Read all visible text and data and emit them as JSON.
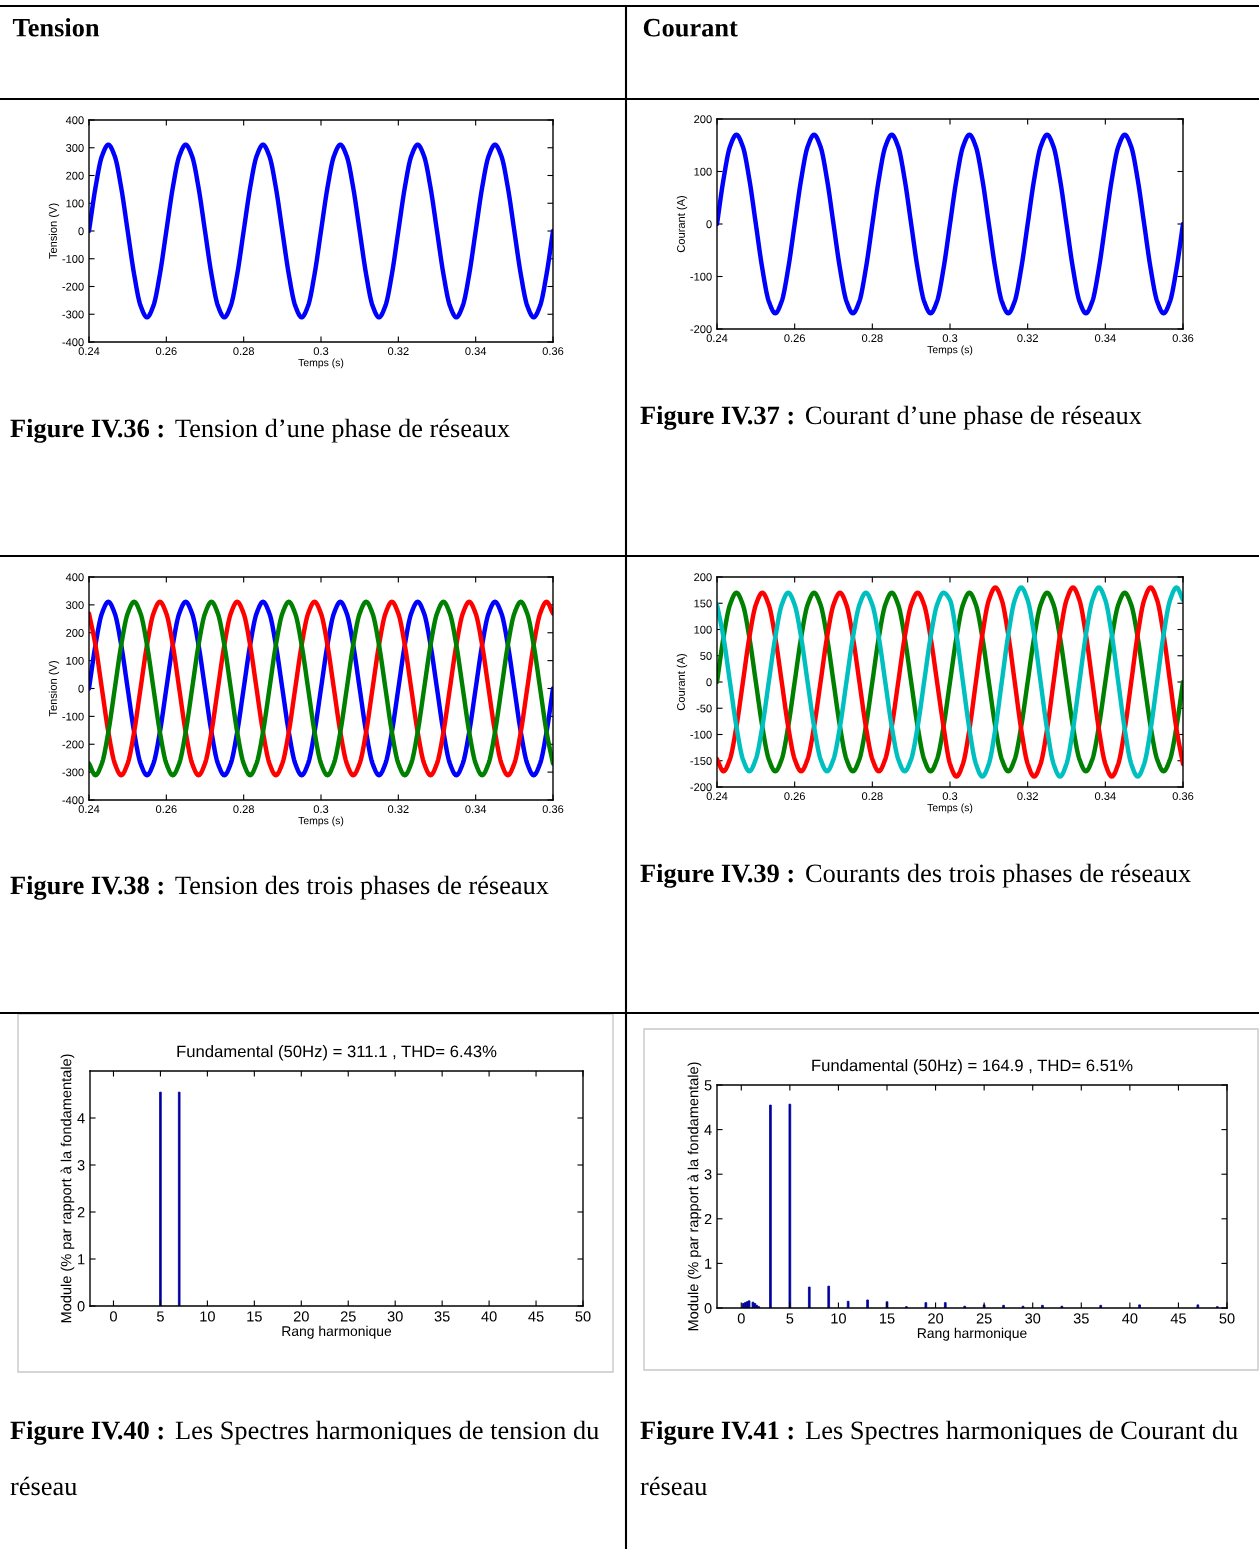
{
  "chart_data": [
    {
      "type": "line",
      "xlabel": "Temps (s)",
      "ylabel": "Tension (V)",
      "xlim": [
        0.24,
        0.36
      ],
      "xticks": [
        0.24,
        0.26,
        0.28,
        0.3,
        0.32,
        0.34,
        0.36
      ],
      "ylim": [
        -400,
        400
      ],
      "yticks": [
        -400,
        -300,
        -200,
        -100,
        0,
        100,
        200,
        300,
        400
      ],
      "grid": false,
      "legend": false,
      "annotations": [
        "Tension",
        "Figure IV.36 :",
        "Tension d’une phase de réseaux"
      ],
      "x": [
        0.24,
        0.24167,
        0.24333,
        0.245,
        0.24667,
        0.24833,
        0.25,
        0.25167,
        0.25333,
        0.255,
        0.25667,
        0.25833,
        0.26,
        0.26167,
        0.26333,
        0.265,
        0.26667,
        0.26833,
        0.27,
        0.27167,
        0.27333,
        0.275,
        0.27667,
        0.27833,
        0.28,
        0.28167,
        0.28333,
        0.285,
        0.28667,
        0.28833,
        0.29,
        0.29167,
        0.29333,
        0.295,
        0.29667,
        0.29833,
        0.3,
        0.30167,
        0.30333,
        0.305,
        0.30667,
        0.30833,
        0.31,
        0.31167,
        0.31333,
        0.315,
        0.31667,
        0.31833,
        0.32,
        0.32167,
        0.32333,
        0.325,
        0.32667,
        0.32833,
        0.33,
        0.33167,
        0.33333,
        0.335,
        0.33667,
        0.33833,
        0.34,
        0.34167,
        0.34333,
        0.345,
        0.34667,
        0.34833,
        0.35,
        0.35167,
        0.35333,
        0.355,
        0.35667,
        0.35833,
        0.36
      ],
      "series": [
        {
          "color": "#0000ff",
          "values": [
            0,
            156,
            269,
            311,
            269,
            156,
            0,
            -156,
            -269,
            -311,
            -269,
            -156,
            0,
            156,
            269,
            311,
            269,
            156,
            0,
            -156,
            -269,
            -311,
            -269,
            -156,
            0,
            156,
            269,
            311,
            269,
            156,
            0,
            -156,
            -269,
            -311,
            -269,
            -156,
            0,
            156,
            269,
            311,
            269,
            156,
            0,
            -156,
            -269,
            -311,
            -269,
            -156,
            0,
            156,
            269,
            311,
            269,
            156,
            0,
            -156,
            -269,
            -311,
            -269,
            -156,
            0,
            156,
            269,
            311,
            269,
            156,
            0,
            -156,
            -269,
            -311,
            -269,
            -156,
            0
          ]
        }
      ]
    },
    {
      "type": "line",
      "xlabel": "Temps (s)",
      "ylabel": "Courant (A)",
      "xlim": [
        0.24,
        0.36
      ],
      "xticks": [
        0.24,
        0.26,
        0.28,
        0.3,
        0.32,
        0.34,
        0.36
      ],
      "ylim": [
        -200,
        200
      ],
      "yticks": [
        -200,
        -100,
        0,
        100,
        200
      ],
      "grid": false,
      "legend": false,
      "annotations": [
        "Courant",
        "Figure IV.37 :",
        "Courant d’une phase de réseaux"
      ],
      "x": [
        0.24,
        0.24167,
        0.24333,
        0.245,
        0.24667,
        0.24833,
        0.25,
        0.25167,
        0.25333,
        0.255,
        0.25667,
        0.25833,
        0.26,
        0.26167,
        0.26333,
        0.265,
        0.26667,
        0.26833,
        0.27,
        0.27167,
        0.27333,
        0.275,
        0.27667,
        0.27833,
        0.28,
        0.28167,
        0.28333,
        0.285,
        0.28667,
        0.28833,
        0.29,
        0.29167,
        0.29333,
        0.295,
        0.29667,
        0.29833,
        0.3,
        0.30167,
        0.30333,
        0.305,
        0.30667,
        0.30833,
        0.31,
        0.31167,
        0.31333,
        0.315,
        0.31667,
        0.31833,
        0.32,
        0.32167,
        0.32333,
        0.325,
        0.32667,
        0.32833,
        0.33,
        0.33167,
        0.33333,
        0.335,
        0.33667,
        0.33833,
        0.34,
        0.34167,
        0.34333,
        0.345,
        0.34667,
        0.34833,
        0.35,
        0.35167,
        0.35333,
        0.355,
        0.35667,
        0.35833,
        0.36
      ],
      "series": [
        {
          "color": "#0000ff",
          "values": [
            0,
            85,
            147,
            170,
            147,
            85,
            0,
            -85,
            -147,
            -170,
            -147,
            -85,
            0,
            85,
            147,
            170,
            147,
            85,
            0,
            -85,
            -147,
            -170,
            -147,
            -85,
            0,
            85,
            147,
            170,
            147,
            85,
            0,
            -85,
            -147,
            -170,
            -147,
            -85,
            0,
            85,
            147,
            170,
            147,
            85,
            0,
            -85,
            -147,
            -170,
            -147,
            -85,
            0,
            85,
            147,
            170,
            147,
            85,
            0,
            -85,
            -147,
            -170,
            -147,
            -85,
            0,
            85,
            147,
            170,
            147,
            85,
            0,
            -85,
            -147,
            -170,
            -147,
            -85,
            0
          ]
        }
      ]
    },
    {
      "type": "line",
      "xlabel": "Temps (s)",
      "ylabel": "Tension (V)",
      "xlim": [
        0.24,
        0.36
      ],
      "xticks": [
        0.24,
        0.26,
        0.28,
        0.3,
        0.32,
        0.34,
        0.36
      ],
      "ylim": [
        -400,
        400
      ],
      "yticks": [
        -400,
        -300,
        -200,
        -100,
        0,
        100,
        200,
        300,
        400
      ],
      "grid": false,
      "legend": false,
      "annotations": [
        "Figure IV.38 :",
        "Tension des trois phases de réseaux"
      ],
      "x": [
        0.24,
        0.24167,
        0.24333,
        0.245,
        0.24667,
        0.24833,
        0.25,
        0.25167,
        0.25333,
        0.255,
        0.25667,
        0.25833,
        0.26,
        0.26167,
        0.26333,
        0.265,
        0.26667,
        0.26833,
        0.27,
        0.27167,
        0.27333,
        0.275,
        0.27667,
        0.27833,
        0.28,
        0.28167,
        0.28333,
        0.285,
        0.28667,
        0.28833,
        0.29,
        0.29167,
        0.29333,
        0.295,
        0.29667,
        0.29833,
        0.3,
        0.30167,
        0.30333,
        0.305,
        0.30667,
        0.30833,
        0.31,
        0.31167,
        0.31333,
        0.315,
        0.31667,
        0.31833,
        0.32,
        0.32167,
        0.32333,
        0.325,
        0.32667,
        0.32833,
        0.33,
        0.33167,
        0.33333,
        0.335,
        0.33667,
        0.33833,
        0.34,
        0.34167,
        0.34333,
        0.345,
        0.34667,
        0.34833,
        0.35,
        0.35167,
        0.35333,
        0.355,
        0.35667,
        0.35833,
        0.36
      ],
      "series": [
        {
          "color": "#0000ff",
          "values": [
            0,
            156,
            269,
            311,
            269,
            156,
            0,
            -156,
            -269,
            -311,
            -269,
            -156,
            0,
            156,
            269,
            311,
            269,
            156,
            0,
            -156,
            -269,
            -311,
            -269,
            -156,
            0,
            156,
            269,
            311,
            269,
            156,
            0,
            -156,
            -269,
            -311,
            -269,
            -156,
            0,
            156,
            269,
            311,
            269,
            156,
            0,
            -156,
            -269,
            -311,
            -269,
            -156,
            0,
            156,
            269,
            311,
            269,
            156,
            0,
            -156,
            -269,
            -311,
            -269,
            -156,
            0,
            156,
            269,
            311,
            269,
            156,
            0,
            -156,
            -269,
            -311,
            -269,
            -156,
            0
          ]
        },
        {
          "color": "#ff0000",
          "values": [
            269,
            156,
            0,
            -156,
            -269,
            -311,
            -269,
            -156,
            0,
            156,
            269,
            311,
            269,
            156,
            0,
            -156,
            -269,
            -311,
            -269,
            -156,
            0,
            156,
            269,
            311,
            269,
            156,
            0,
            -156,
            -269,
            -311,
            -269,
            -156,
            0,
            156,
            269,
            311,
            269,
            156,
            0,
            -156,
            -269,
            -311,
            -269,
            -156,
            0,
            156,
            269,
            311,
            269,
            156,
            0,
            -156,
            -269,
            -311,
            -269,
            -156,
            0,
            156,
            269,
            311,
            269,
            156,
            0,
            -156,
            -269,
            -311,
            -269,
            -156,
            0,
            156,
            269,
            311,
            269
          ]
        },
        {
          "color": "#008000",
          "values": [
            -269,
            -311,
            -269,
            -156,
            0,
            156,
            269,
            311,
            269,
            156,
            0,
            -156,
            -269,
            -311,
            -269,
            -156,
            0,
            156,
            269,
            311,
            269,
            156,
            0,
            -156,
            -269,
            -311,
            -269,
            -156,
            0,
            156,
            269,
            311,
            269,
            156,
            0,
            -156,
            -269,
            -311,
            -269,
            -156,
            0,
            156,
            269,
            311,
            269,
            156,
            0,
            -156,
            -269,
            -311,
            -269,
            -156,
            0,
            156,
            269,
            311,
            269,
            156,
            0,
            -156,
            -269,
            -311,
            -269,
            -156,
            0,
            156,
            269,
            311,
            269,
            156,
            0,
            -156,
            -269
          ]
        }
      ]
    },
    {
      "type": "line",
      "xlabel": "Temps (s)",
      "ylabel": "Courant (A)",
      "xlim": [
        0.24,
        0.36
      ],
      "xticks": [
        0.24,
        0.26,
        0.28,
        0.3,
        0.32,
        0.34,
        0.36
      ],
      "ylim": [
        -200,
        200
      ],
      "yticks": [
        -200,
        -150,
        -100,
        -50,
        0,
        50,
        100,
        150,
        200
      ],
      "grid": false,
      "legend": false,
      "annotations": [
        "Figure IV.39 :",
        "Courants des trois phases de réseaux"
      ],
      "x": [
        0.24,
        0.24167,
        0.24333,
        0.245,
        0.24667,
        0.24833,
        0.25,
        0.25167,
        0.25333,
        0.255,
        0.25667,
        0.25833,
        0.26,
        0.26167,
        0.26333,
        0.265,
        0.26667,
        0.26833,
        0.27,
        0.27167,
        0.27333,
        0.275,
        0.27667,
        0.27833,
        0.28,
        0.28167,
        0.28333,
        0.285,
        0.28667,
        0.28833,
        0.29,
        0.29167,
        0.29333,
        0.295,
        0.29667,
        0.29833,
        0.3,
        0.30167,
        0.30333,
        0.305,
        0.30667,
        0.30833,
        0.31,
        0.31167,
        0.31333,
        0.315,
        0.31667,
        0.31833,
        0.32,
        0.32167,
        0.32333,
        0.325,
        0.32667,
        0.32833,
        0.33,
        0.33167,
        0.33333,
        0.335,
        0.33667,
        0.33833,
        0.34,
        0.34167,
        0.34333,
        0.345,
        0.34667,
        0.34833,
        0.35,
        0.35167,
        0.35333,
        0.355,
        0.35667,
        0.35833,
        0.36
      ],
      "series": [
        {
          "color": "#008000",
          "values": [
            0,
            85,
            147,
            170,
            147,
            85,
            0,
            -85,
            -147,
            -170,
            -147,
            -85,
            0,
            85,
            147,
            170,
            147,
            85,
            0,
            -85,
            -147,
            -170,
            -147,
            -85,
            0,
            85,
            147,
            170,
            147,
            85,
            0,
            -85,
            -147,
            -170,
            -147,
            -85,
            0,
            85,
            147,
            170,
            147,
            85,
            0,
            -85,
            -147,
            -170,
            -147,
            -85,
            0,
            85,
            147,
            170,
            147,
            85,
            0,
            -85,
            -147,
            -170,
            -147,
            -85,
            0,
            85,
            147,
            170,
            147,
            85,
            0,
            -85,
            -147,
            -170,
            -147,
            -85,
            0
          ]
        },
        {
          "color": "#ff0000",
          "values": [
            -147,
            -170,
            -147,
            -85,
            0,
            85,
            147,
            170,
            147,
            85,
            0,
            -85,
            -147,
            -170,
            -147,
            -85,
            0,
            85,
            147,
            170,
            147,
            85,
            0,
            -85,
            -147,
            -170,
            -147,
            -85,
            0,
            85,
            147,
            170,
            147,
            85,
            0,
            -85,
            -156,
            -180,
            -156,
            -90,
            0,
            90,
            156,
            180,
            156,
            90,
            0,
            -90,
            -156,
            -180,
            -156,
            -90,
            0,
            90,
            156,
            180,
            156,
            90,
            0,
            -90,
            -156,
            -180,
            -156,
            -90,
            0,
            90,
            156,
            180,
            156,
            90,
            0,
            -90,
            -156
          ]
        },
        {
          "color": "#00bfbf",
          "values": [
            147,
            85,
            0,
            -85,
            -147,
            -170,
            -147,
            -85,
            0,
            85,
            147,
            170,
            147,
            85,
            0,
            -85,
            -147,
            -170,
            -147,
            -85,
            0,
            85,
            147,
            170,
            147,
            85,
            0,
            -85,
            -147,
            -170,
            -147,
            -85,
            0,
            85,
            147,
            170,
            156,
            90,
            0,
            -90,
            -156,
            -180,
            -156,
            -90,
            0,
            90,
            156,
            180,
            156,
            90,
            0,
            -90,
            -156,
            -180,
            -156,
            -90,
            0,
            90,
            156,
            180,
            156,
            90,
            0,
            -90,
            -156,
            -180,
            -156,
            -90,
            0,
            90,
            156,
            180,
            156
          ]
        }
      ]
    },
    {
      "type": "bar",
      "title": "Fundamental (50Hz) = 311.1 , THD= 6.43%",
      "xlabel": "Rang harmonique",
      "ylabel": "Module (% par rapport à la fondamentale)",
      "xlim": [
        -2.5,
        50
      ],
      "xticks": [
        0,
        5,
        10,
        15,
        20,
        25,
        30,
        35,
        40,
        45,
        50
      ],
      "ylim": [
        0,
        5
      ],
      "yticks": [
        0,
        1,
        2,
        3,
        4
      ],
      "grid": false,
      "legend": false,
      "annotations": [
        "Figure IV.40 :",
        "Les Spectres harmoniques de tension du réseau"
      ],
      "x": [
        5,
        7
      ],
      "series": [
        {
          "color": "#0000a0",
          "values": [
            4.55,
            4.55
          ]
        }
      ]
    },
    {
      "type": "bar",
      "title": "Fundamental (50Hz) = 164.9 , THD= 6.51%",
      "xlabel": "Rang harmonique",
      "ylabel": "Module (% par rapport à la fondamentale)",
      "xlim": [
        -2.5,
        50
      ],
      "xticks": [
        0,
        5,
        10,
        15,
        20,
        25,
        30,
        35,
        40,
        45,
        50
      ],
      "ylim": [
        0,
        5
      ],
      "yticks": [
        0,
        1,
        2,
        3,
        4,
        5
      ],
      "grid": false,
      "legend": false,
      "annotations": [
        "Figure IV.41 :",
        "Les Spectres harmoniques de Courant du réseau"
      ],
      "x": [
        0.2,
        0.4,
        0.6,
        0.8,
        1.2,
        1.4,
        1.6,
        1.8,
        3,
        5,
        7,
        9,
        11,
        13,
        15,
        17,
        19,
        21,
        23,
        25,
        27,
        29,
        31,
        33,
        37,
        41,
        47,
        49
      ],
      "series": [
        {
          "color": "#0000a0",
          "values": [
            0.1,
            0.12,
            0.14,
            0.16,
            0.13,
            0.1,
            0.06,
            0.03,
            4.55,
            4.57,
            0.47,
            0.49,
            0.15,
            0.18,
            0.14,
            0.03,
            0.12,
            0.12,
            0.04,
            0.07,
            0.06,
            0.04,
            0.06,
            0.04,
            0.06,
            0.07,
            0.07,
            0.03
          ]
        }
      ]
    }
  ]
}
